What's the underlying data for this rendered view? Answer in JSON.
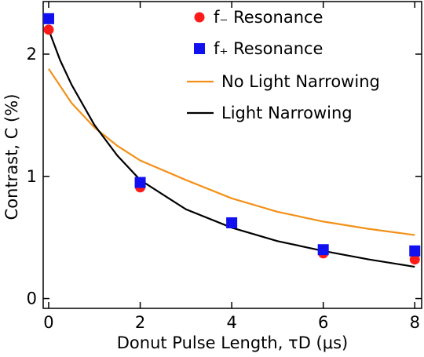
{
  "chart_data": {
    "type": "scatter",
    "xlabel": "Donut Pulse Length, τD (μs)",
    "ylabel": "Contrast, C (%)",
    "xlim": [
      -0.12,
      8.15
    ],
    "ylim": [
      -0.08,
      2.43
    ],
    "xticks": [
      0,
      2,
      4,
      6,
      8
    ],
    "yticks": [
      0,
      1,
      2
    ],
    "legend": "upper right",
    "series": [
      {
        "name": "f₋ Resonance",
        "type": "scatter",
        "marker": "circle",
        "color": "#ff1a1a",
        "x": [
          0,
          2,
          4,
          6,
          8
        ],
        "values": [
          2.2,
          0.91,
          0.62,
          0.37,
          0.32
        ]
      },
      {
        "name": "f₊ Resonance",
        "type": "scatter",
        "marker": "square",
        "color": "#1010f0",
        "x": [
          0,
          2,
          4,
          6,
          8
        ],
        "values": [
          2.29,
          0.95,
          0.62,
          0.4,
          0.39
        ]
      },
      {
        "name": "No Light Narrowing",
        "type": "line",
        "color": "#f39018",
        "x": [
          0,
          0.5,
          1,
          1.5,
          2,
          3,
          4,
          5,
          6,
          7,
          8
        ],
        "values": [
          1.88,
          1.6,
          1.4,
          1.25,
          1.13,
          0.97,
          0.82,
          0.71,
          0.63,
          0.57,
          0.52
        ]
      },
      {
        "name": "Light Narrowing",
        "type": "line",
        "color": "#000000",
        "x": [
          0,
          0.25,
          0.5,
          1,
          1.5,
          2,
          3,
          4,
          5,
          6,
          7,
          8
        ],
        "values": [
          2.2,
          1.95,
          1.75,
          1.42,
          1.17,
          0.97,
          0.73,
          0.58,
          0.47,
          0.39,
          0.32,
          0.26
        ]
      }
    ]
  }
}
